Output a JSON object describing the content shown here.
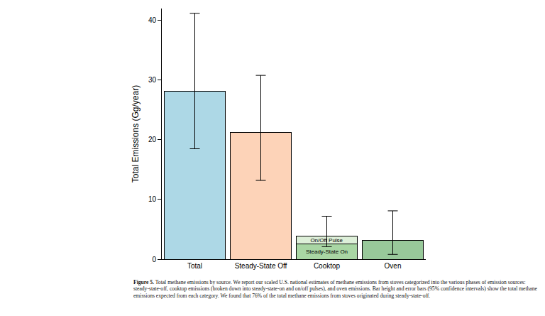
{
  "chart_data": {
    "type": "bar",
    "stacked": true,
    "grid": false,
    "y_label": "Total Emissions (Gg/year)",
    "categories": [
      "Total",
      "Steady-State Off",
      "Cooktop",
      "Oven"
    ],
    "series": [
      {
        "values": [
          28.1,
          21.2,
          null,
          3.1
        ],
        "colors": [
          "#add8e6",
          "#fdd3b8",
          "#a9d6a4",
          "#98c99a"
        ]
      },
      {
        "name": "Steady-State On",
        "values": [
          null,
          null,
          2.5,
          null
        ],
        "color": "#a9d6a4"
      },
      {
        "name": "On/Off Pulse",
        "values": [
          null,
          null,
          1.4,
          null
        ],
        "color": "#ddefd8"
      }
    ],
    "error_low": [
      18.5,
      13.2,
      2.1,
      0.8
    ],
    "error_high": [
      41.2,
      30.8,
      7.2,
      8.1
    ],
    "ylim": [
      0,
      42
    ],
    "yticks": [
      0,
      10,
      20,
      30,
      40
    ],
    "caption_label": "Figure 5.",
    "caption": "Total methane emissions by source. We report our scaled U.S. national estimates of methane emissions from stoves categorized into the various phases of emission sources: steady-state-off, cooktop emissions (broken down into steady-state-on and on/off pulses), and oven emissions. Bar height and error bars (95% confidence intervals) show the total methane emissions expected from each category. We found that 76% of the total methane emissions from stoves originated during steady-state-off."
  }
}
